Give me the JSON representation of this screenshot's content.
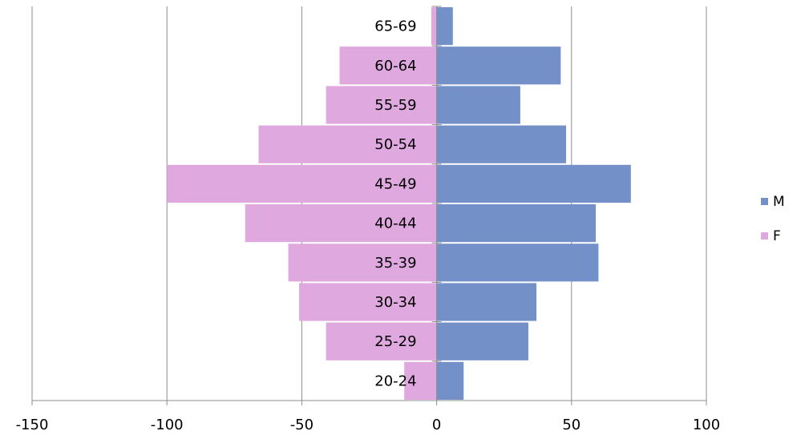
{
  "chart_data": {
    "type": "bar",
    "orientation": "horizontal",
    "categories": [
      "20-24",
      "25-29",
      "30-34",
      "35-39",
      "40-44",
      "45-49",
      "50-54",
      "55-59",
      "60-64",
      "65-69"
    ],
    "series": [
      {
        "name": "M",
        "color": "#7391c8",
        "values": [
          10,
          34,
          37,
          60,
          59,
          72,
          48,
          31,
          46,
          6
        ]
      },
      {
        "name": "F",
        "color": "#dfa8df",
        "values": [
          -12,
          -41,
          -51,
          -55,
          -71,
          -100,
          -66,
          -41,
          -36,
          -2
        ]
      }
    ],
    "xlim": [
      -150,
      100
    ],
    "xticks": [
      "-150",
      "-100",
      "-50",
      "0",
      "50",
      "100"
    ],
    "grid": "vertical",
    "legend_position": "right",
    "title": "",
    "xlabel": "",
    "ylabel": ""
  }
}
